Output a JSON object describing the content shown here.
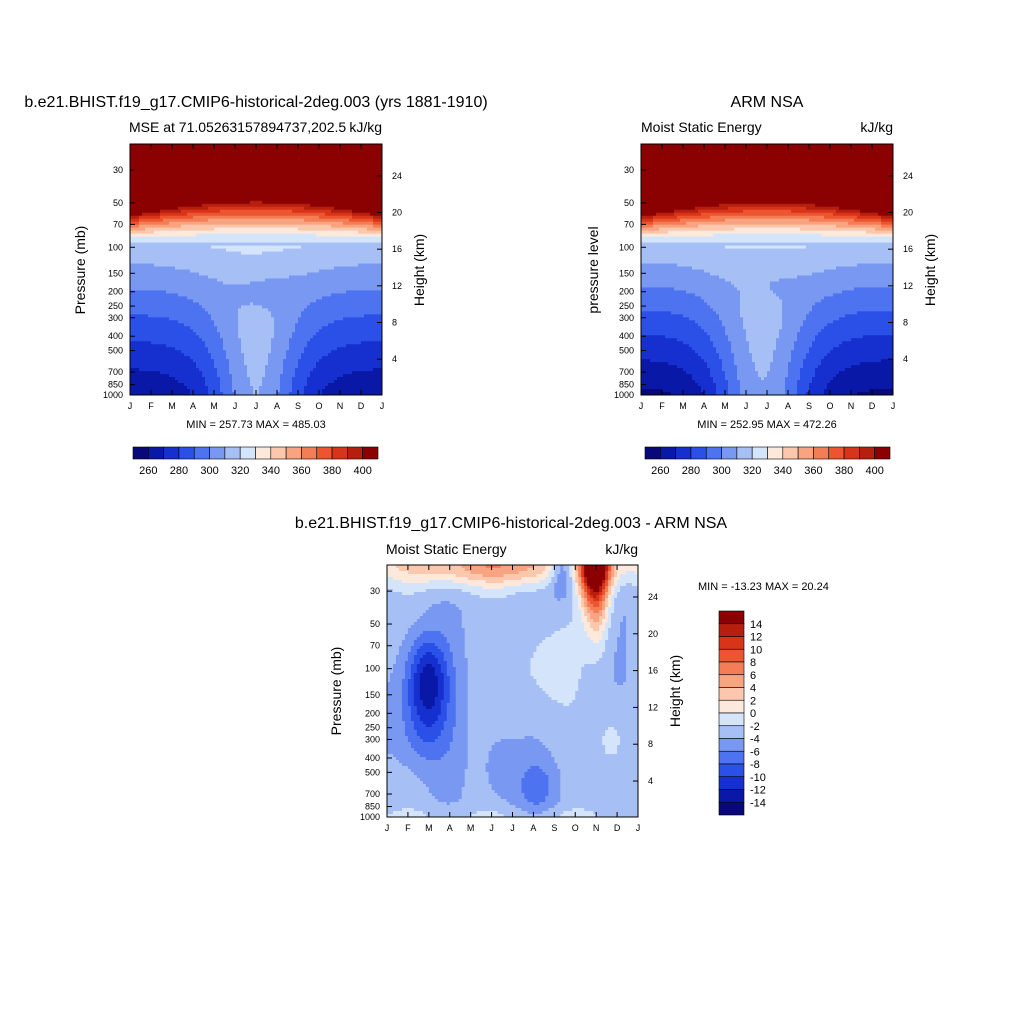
{
  "panels": [
    {
      "id": "model",
      "title": "b.e21.BHIST.f19_g17.CMIP6-historical-2deg.003 (yrs 1881-1910)",
      "left_label": "MSE at 71.05263157894737,202.5",
      "right_label": "kJ/kg",
      "ylabel": "Pressure (mb)",
      "ylabel_right": "Height (km)",
      "minmax": "MIN = 257.73 MAX = 485.03"
    },
    {
      "id": "obs",
      "title": "ARM NSA",
      "left_label": "Moist Static Energy",
      "right_label": "kJ/kg",
      "ylabel": "pressure level",
      "ylabel_right": "Height (km)",
      "minmax": "MIN = 252.95 MAX = 472.26"
    },
    {
      "id": "diff",
      "title": "b.e21.BHIST.f19_g17.CMIP6-historical-2deg.003 - ARM NSA",
      "left_label": "Moist Static Energy",
      "right_label": "kJ/kg",
      "ylabel": "Pressure (mb)",
      "ylabel_right": "Height (km)",
      "minmax": "MIN = -13.23 MAX =  20.24"
    }
  ],
  "chart_data": [
    {
      "type": "heatmap",
      "panel": "model",
      "x": [
        "J",
        "F",
        "M",
        "A",
        "M",
        "J",
        "J",
        "A",
        "S",
        "O",
        "N",
        "D",
        "J"
      ],
      "pressure_ticks": [
        30,
        50,
        70,
        100,
        150,
        200,
        250,
        300,
        400,
        500,
        700,
        850,
        1000
      ],
      "height_ticks": [
        4,
        8,
        12,
        16,
        20,
        24
      ],
      "ylim": [
        1000,
        20
      ],
      "levels": [
        255,
        260,
        265,
        270,
        275,
        280,
        285,
        290,
        295,
        300,
        305,
        310,
        315,
        320,
        325,
        330,
        335,
        340,
        345,
        350,
        355,
        360,
        365,
        370,
        375,
        380,
        385,
        390,
        395,
        400,
        405
      ],
      "colorbar_ticks": [
        260,
        280,
        300,
        320,
        340,
        360,
        380,
        400
      ]
    },
    {
      "type": "heatmap",
      "panel": "obs",
      "x": [
        "J",
        "F",
        "M",
        "A",
        "M",
        "J",
        "J",
        "A",
        "S",
        "O",
        "N",
        "D",
        "J"
      ],
      "pressure_ticks": [
        30,
        50,
        70,
        100,
        150,
        200,
        250,
        300,
        400,
        500,
        700,
        850,
        1000
      ],
      "height_ticks": [
        4,
        8,
        12,
        16,
        20,
        24
      ],
      "ylim": [
        1000,
        20
      ],
      "levels": [
        255,
        260,
        265,
        270,
        275,
        280,
        285,
        290,
        295,
        300,
        305,
        310,
        315,
        320,
        325,
        330,
        335,
        340,
        345,
        350,
        355,
        360,
        365,
        370,
        375,
        380,
        385,
        390,
        395,
        400,
        405
      ],
      "colorbar_ticks": [
        260,
        280,
        300,
        320,
        340,
        360,
        380,
        400
      ]
    },
    {
      "type": "heatmap",
      "panel": "diff",
      "x": [
        "J",
        "F",
        "M",
        "A",
        "M",
        "J",
        "J",
        "A",
        "S",
        "O",
        "N",
        "D",
        "J"
      ],
      "pressure_ticks": [
        30,
        50,
        70,
        100,
        150,
        200,
        250,
        300,
        400,
        500,
        700,
        850,
        1000
      ],
      "height_ticks": [
        4,
        8,
        12,
        16,
        20,
        24
      ],
      "ylim": [
        1000,
        20
      ],
      "levels": [
        -16,
        -14,
        -12,
        -10,
        -8,
        -6,
        -4,
        -2,
        0,
        2,
        4,
        6,
        8,
        10,
        12,
        14,
        16
      ],
      "colorbar_ticks": [
        14,
        12,
        10,
        8,
        6,
        4,
        2,
        0,
        -2,
        -4,
        -6,
        -8,
        -10,
        -12,
        -14
      ]
    }
  ],
  "colors": {
    "seq": [
      "#08087a",
      "#0a18a8",
      "#1630d0",
      "#2a50e8",
      "#4d73f0",
      "#7898f2",
      "#a6bff5",
      "#d4e4fa",
      "#fde9dc",
      "#fcc8ad",
      "#f9a480",
      "#f57d55",
      "#ec5530",
      "#d8341a",
      "#b61e0e",
      "#8b0000"
    ],
    "div": [
      "#08087a",
      "#0a18a8",
      "#1630d0",
      "#2a50e8",
      "#4d73f0",
      "#7898f2",
      "#a6bff5",
      "#d4e4fa",
      "#fde9dc",
      "#fcc8ad",
      "#f9a480",
      "#f57d55",
      "#ec5530",
      "#d8341a",
      "#b61e0e",
      "#8b0000"
    ]
  }
}
